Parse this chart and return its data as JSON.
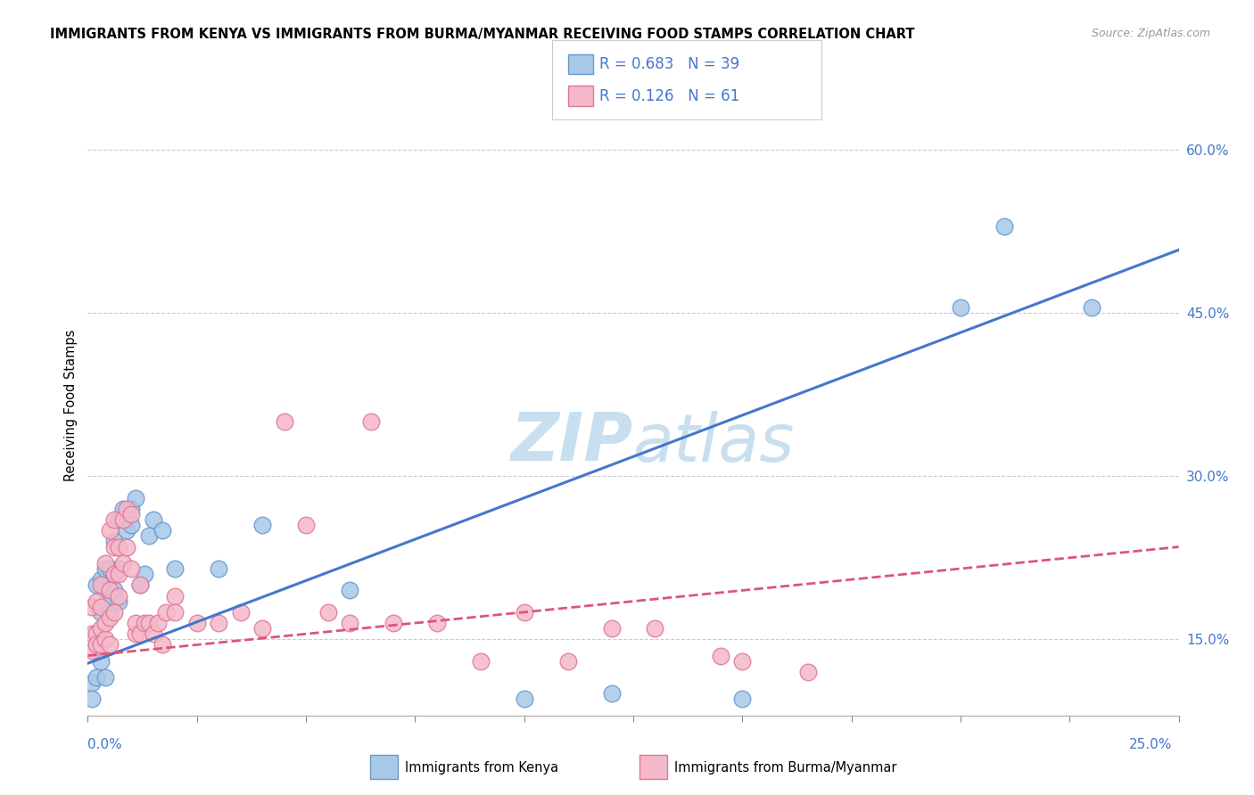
{
  "title": "IMMIGRANTS FROM KENYA VS IMMIGRANTS FROM BURMA/MYANMAR RECEIVING FOOD STAMPS CORRELATION CHART",
  "source": "Source: ZipAtlas.com",
  "ylabel": "Receiving Food Stamps",
  "y_ticks": [
    0.15,
    0.3,
    0.45,
    0.6
  ],
  "y_tick_labels": [
    "15.0%",
    "30.0%",
    "45.0%",
    "60.0%"
  ],
  "x_min": 0.0,
  "x_max": 0.25,
  "y_min": 0.08,
  "y_max": 0.65,
  "kenya_color": "#a8c8e8",
  "kenya_edge_color": "#6699cc",
  "burma_color": "#f5b8c8",
  "burma_edge_color": "#dd7799",
  "kenya_R": 0.683,
  "kenya_N": 39,
  "burma_R": 0.126,
  "burma_N": 61,
  "kenya_line_color": "#4477cc",
  "burma_line_color": "#dd5577",
  "watermark_color": "#c8dff0",
  "kenya_line_intercept": 0.128,
  "kenya_line_slope": 1.52,
  "burma_line_intercept": 0.135,
  "burma_line_slope": 0.4,
  "kenya_scatter_x": [
    0.001,
    0.001,
    0.002,
    0.002,
    0.003,
    0.003,
    0.003,
    0.004,
    0.004,
    0.004,
    0.005,
    0.005,
    0.005,
    0.006,
    0.006,
    0.006,
    0.007,
    0.007,
    0.007,
    0.008,
    0.009,
    0.01,
    0.01,
    0.011,
    0.012,
    0.013,
    0.014,
    0.015,
    0.017,
    0.02,
    0.03,
    0.04,
    0.06,
    0.1,
    0.12,
    0.15,
    0.2,
    0.21,
    0.23
  ],
  "kenya_scatter_y": [
    0.11,
    0.095,
    0.115,
    0.2,
    0.13,
    0.175,
    0.205,
    0.115,
    0.195,
    0.215,
    0.175,
    0.185,
    0.215,
    0.195,
    0.21,
    0.24,
    0.185,
    0.215,
    0.26,
    0.27,
    0.25,
    0.255,
    0.27,
    0.28,
    0.2,
    0.21,
    0.245,
    0.26,
    0.25,
    0.215,
    0.215,
    0.255,
    0.195,
    0.095,
    0.1,
    0.095,
    0.455,
    0.53,
    0.455
  ],
  "burma_scatter_x": [
    0.001,
    0.001,
    0.001,
    0.002,
    0.002,
    0.002,
    0.003,
    0.003,
    0.003,
    0.003,
    0.004,
    0.004,
    0.004,
    0.005,
    0.005,
    0.005,
    0.005,
    0.006,
    0.006,
    0.006,
    0.006,
    0.007,
    0.007,
    0.007,
    0.008,
    0.008,
    0.009,
    0.009,
    0.01,
    0.01,
    0.011,
    0.011,
    0.012,
    0.012,
    0.013,
    0.014,
    0.015,
    0.016,
    0.017,
    0.018,
    0.02,
    0.02,
    0.025,
    0.03,
    0.035,
    0.04,
    0.045,
    0.05,
    0.055,
    0.06,
    0.065,
    0.07,
    0.08,
    0.09,
    0.1,
    0.11,
    0.12,
    0.13,
    0.145,
    0.15,
    0.165
  ],
  "burma_scatter_y": [
    0.18,
    0.155,
    0.14,
    0.155,
    0.145,
    0.185,
    0.145,
    0.16,
    0.18,
    0.2,
    0.15,
    0.165,
    0.22,
    0.145,
    0.17,
    0.195,
    0.25,
    0.21,
    0.235,
    0.26,
    0.175,
    0.19,
    0.21,
    0.235,
    0.22,
    0.26,
    0.235,
    0.27,
    0.215,
    0.265,
    0.155,
    0.165,
    0.2,
    0.155,
    0.165,
    0.165,
    0.155,
    0.165,
    0.145,
    0.175,
    0.19,
    0.175,
    0.165,
    0.165,
    0.175,
    0.16,
    0.35,
    0.255,
    0.175,
    0.165,
    0.35,
    0.165,
    0.165,
    0.13,
    0.175,
    0.13,
    0.16,
    0.16,
    0.135,
    0.13,
    0.12
  ]
}
